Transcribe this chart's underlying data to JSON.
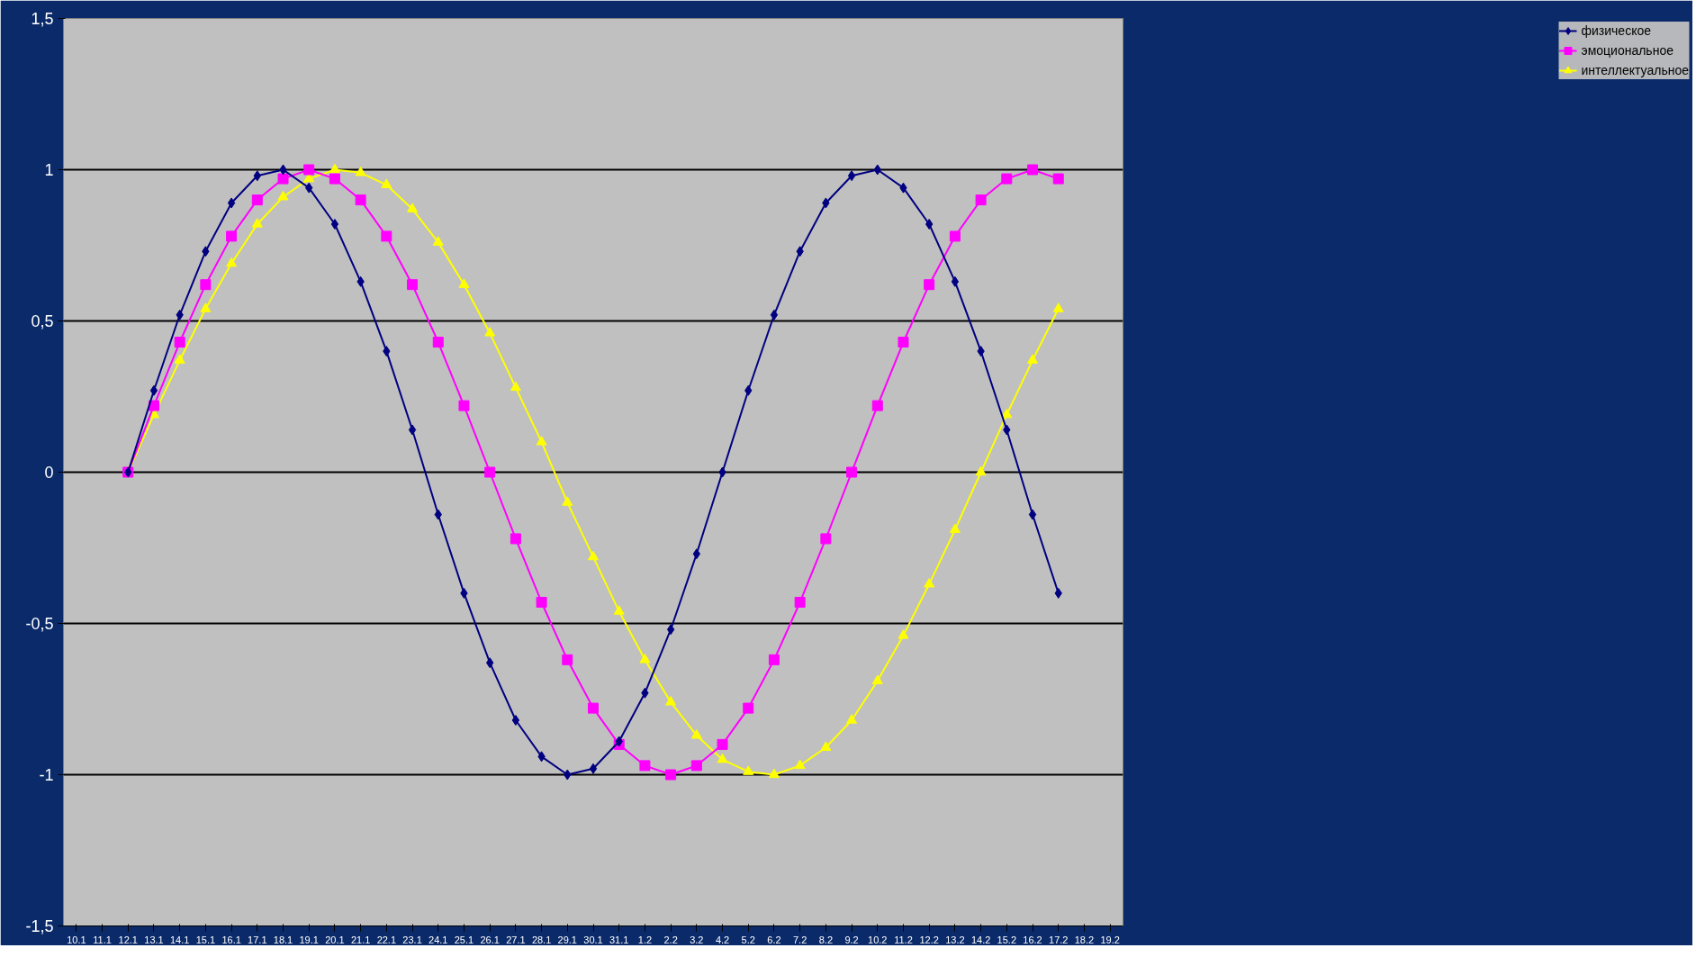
{
  "chart_data": {
    "type": "line",
    "categories": [
      "10.1",
      "11.1",
      "12.1",
      "13.1",
      "14.1",
      "15.1",
      "16.1",
      "17.1",
      "18.1",
      "19.1",
      "20.1",
      "21.1",
      "22.1",
      "23.1",
      "24.1",
      "25.1",
      "26.1",
      "27.1",
      "28.1",
      "29.1",
      "30.1",
      "31.1",
      "1.2",
      "2.2",
      "3.2",
      "4.2",
      "5.2",
      "6.2",
      "7.2",
      "8.2",
      "9.2",
      "10.2",
      "11.2",
      "12.2",
      "13.2",
      "14.2",
      "15.2",
      "16.2",
      "17.2",
      "18.2",
      "19.2"
    ],
    "series": [
      {
        "name": "физическое",
        "color": "#000080",
        "marker": "diamond",
        "values": [
          null,
          null,
          0,
          0.27,
          0.52,
          0.73,
          0.89,
          0.98,
          1,
          0.94,
          0.82,
          0.63,
          0.4,
          0.14,
          -0.14,
          -0.4,
          -0.63,
          -0.82,
          -0.94,
          -1,
          -0.98,
          -0.89,
          -0.73,
          -0.52,
          -0.27,
          0,
          0.27,
          0.52,
          0.73,
          0.89,
          0.98,
          1,
          0.94,
          0.82,
          0.63,
          0.4,
          0.14,
          -0.14,
          -0.4,
          null,
          null
        ]
      },
      {
        "name": "эмоциональное",
        "color": "#ff00ff",
        "marker": "square",
        "values": [
          null,
          null,
          0,
          0.22,
          0.43,
          0.62,
          0.78,
          0.9,
          0.97,
          1,
          0.97,
          0.9,
          0.78,
          0.62,
          0.43,
          0.22,
          0,
          -0.22,
          -0.43,
          -0.62,
          -0.78,
          -0.9,
          -0.97,
          -1,
          -0.97,
          -0.9,
          -0.78,
          -0.62,
          -0.43,
          -0.22,
          0,
          0.22,
          0.43,
          0.62,
          0.78,
          0.9,
          0.97,
          1,
          0.97,
          null,
          null
        ]
      },
      {
        "name": "интеллектуальное",
        "color": "#ffff00",
        "marker": "triangle",
        "values": [
          null,
          null,
          0,
          0.19,
          0.37,
          0.54,
          0.69,
          0.82,
          0.91,
          0.97,
          1,
          0.99,
          0.95,
          0.87,
          0.76,
          0.62,
          0.46,
          0.28,
          0.1,
          -0.1,
          -0.28,
          -0.46,
          -0.62,
          -0.76,
          -0.87,
          -0.95,
          -0.99,
          -1,
          -0.97,
          -0.91,
          -0.82,
          -0.69,
          -0.54,
          -0.37,
          -0.19,
          0,
          0.19,
          0.37,
          0.54,
          null,
          null
        ]
      }
    ],
    "ylim": [
      -1.5,
      1.5
    ],
    "yticks": [
      {
        "value": -1.5,
        "label": "-1,5"
      },
      {
        "value": -1,
        "label": "-1"
      },
      {
        "value": -0.5,
        "label": "-0,5"
      },
      {
        "value": 0,
        "label": "0"
      },
      {
        "value": 0.5,
        "label": "0,5"
      },
      {
        "value": 1,
        "label": "1"
      },
      {
        "value": 1.5,
        "label": "1,5"
      }
    ],
    "grid": "y",
    "legend": "right",
    "line_style": "solid"
  }
}
